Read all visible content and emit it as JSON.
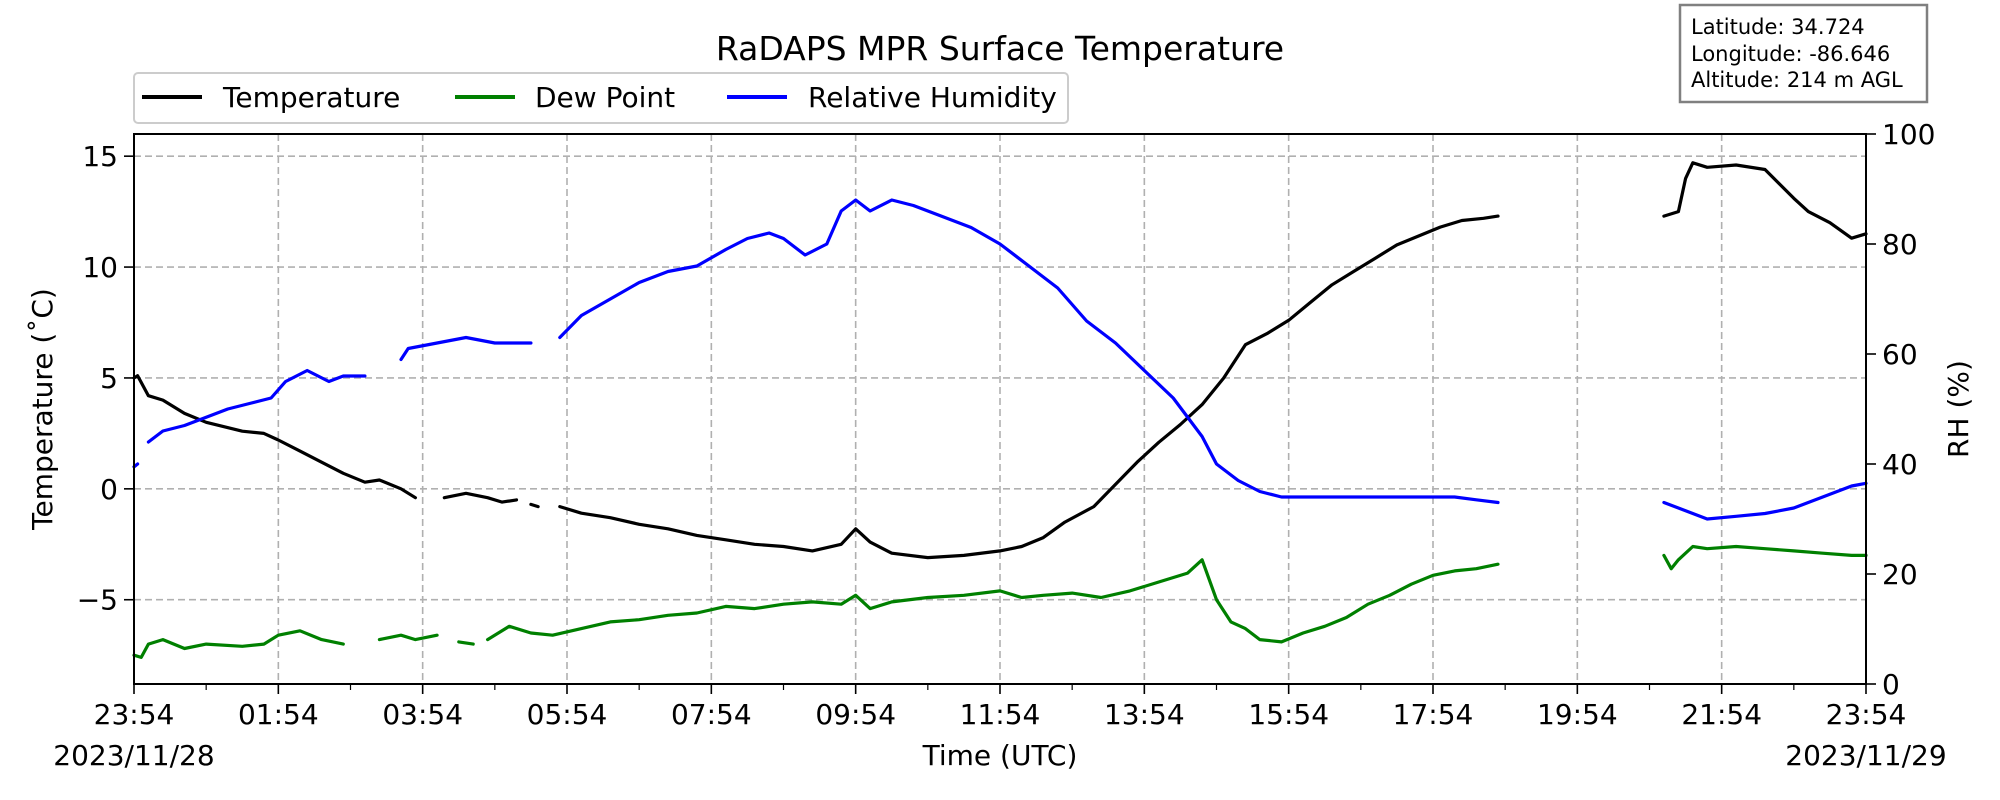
{
  "chart_data": {
    "type": "line",
    "title": "RaDAPS MPR Surface Temperature",
    "xlabel": "Time (UTC)",
    "ylabel": "Temperature ($^\\circ$C)",
    "ylabel_display": "Temperature (˚C)",
    "y2label": "RH (%)",
    "ylim": [
      -8.8,
      16
    ],
    "y2lim": [
      0,
      100
    ],
    "xlim": [
      "2023-11-28 23:54",
      "2023-11-29 23:54"
    ],
    "x_ticks": [
      "23:54",
      "01:54",
      "03:54",
      "05:54",
      "07:54",
      "09:54",
      "11:54",
      "13:54",
      "15:54",
      "17:54",
      "19:54",
      "21:54",
      "23:54"
    ],
    "y_ticks": [
      "15",
      "10",
      "5",
      "0",
      "−5"
    ],
    "y2_ticks": [
      "100",
      "80",
      "60",
      "40",
      "20",
      "0"
    ],
    "date_left": "2023/11/28",
    "date_right": "2023/11/29",
    "grid": true,
    "legend_position": "top-left",
    "station_info": {
      "latitude": "Latitude: 34.724",
      "longitude": "Longitude: -86.646",
      "altitude": "Altitude: 214 m AGL"
    },
    "series": [
      {
        "name": "Temperature",
        "axis": "left",
        "color": "#000000",
        "x_hours": [
          0.0,
          0.05,
          0.2,
          0.4,
          0.7,
          1.0,
          1.5,
          1.8,
          2.0,
          2.3,
          2.6,
          2.9,
          3.2,
          3.4,
          3.7,
          3.9,
          null,
          4.3,
          4.6,
          4.9,
          5.1,
          5.3,
          null,
          5.5,
          5.6,
          null,
          5.9,
          6.2,
          6.6,
          7.0,
          7.4,
          7.8,
          8.2,
          8.6,
          9.0,
          9.4,
          9.8,
          10.0,
          10.2,
          10.5,
          11.0,
          11.5,
          12.0,
          12.3,
          12.6,
          12.9,
          13.3,
          13.6,
          13.9,
          14.2,
          14.5,
          14.8,
          15.1,
          15.4,
          15.7,
          16.0,
          16.3,
          16.6,
          16.9,
          17.2,
          17.5,
          17.8,
          18.1,
          18.4,
          18.7,
          18.9,
          null,
          21.2,
          21.4,
          21.5,
          21.6,
          21.8,
          22.2,
          22.6,
          23.0,
          23.2,
          23.5,
          23.8,
          24.0
        ],
        "y": [
          5.0,
          5.1,
          4.2,
          4.0,
          3.4,
          3.0,
          2.6,
          2.5,
          2.2,
          1.7,
          1.2,
          0.7,
          0.3,
          0.4,
          0.0,
          -0.4,
          null,
          -0.4,
          -0.2,
          -0.4,
          -0.6,
          -0.5,
          null,
          -0.7,
          -0.8,
          null,
          -0.8,
          -1.1,
          -1.3,
          -1.6,
          -1.8,
          -2.1,
          -2.3,
          -2.5,
          -2.6,
          -2.8,
          -2.5,
          -1.8,
          -2.4,
          -2.9,
          -3.1,
          -3.0,
          -2.8,
          -2.6,
          -2.2,
          -1.5,
          -0.8,
          0.2,
          1.2,
          2.1,
          2.9,
          3.8,
          5.0,
          6.5,
          7.0,
          7.6,
          8.4,
          9.2,
          9.8,
          10.4,
          11.0,
          11.4,
          11.8,
          12.1,
          12.2,
          12.3,
          null,
          12.3,
          12.5,
          14.0,
          14.7,
          14.5,
          14.6,
          14.4,
          13.1,
          12.5,
          12.0,
          11.3,
          11.5
        ]
      },
      {
        "name": "Dew Point",
        "axis": "left",
        "color": "#008000",
        "x_hours": [
          0.0,
          0.1,
          0.2,
          0.4,
          0.7,
          1.0,
          1.5,
          1.8,
          2.0,
          2.3,
          2.6,
          2.9,
          3.2,
          3.4,
          3.7,
          3.9,
          4.2,
          null,
          4.5,
          4.7,
          null,
          4.9,
          5.2,
          5.5,
          5.8,
          6.2,
          6.6,
          7.0,
          7.4,
          7.8,
          8.2,
          8.6,
          9.0,
          9.4,
          9.8,
          10.0,
          10.2,
          10.5,
          11.0,
          11.5,
          12.0,
          12.3,
          12.6,
          13.0,
          13.4,
          13.8,
          14.2,
          14.6,
          14.8,
          15.0,
          15.2,
          15.4,
          15.6,
          15.9,
          16.2,
          16.5,
          16.8,
          17.1,
          17.4,
          17.7,
          18.0,
          18.3,
          18.6,
          18.9,
          null,
          21.2,
          21.3,
          21.4,
          21.6,
          21.8,
          22.2,
          22.6,
          23.0,
          23.4,
          23.8,
          24.0
        ],
        "y": [
          -7.5,
          -7.6,
          -7.0,
          -6.8,
          -7.2,
          -7.0,
          -7.1,
          -7.0,
          -6.6,
          -6.4,
          -6.8,
          -7.0,
          null,
          -6.8,
          -6.6,
          -6.8,
          -6.6,
          null,
          -6.9,
          -7.0,
          null,
          -6.8,
          -6.2,
          -6.5,
          -6.6,
          -6.3,
          -6.0,
          -5.9,
          -5.7,
          -5.6,
          -5.3,
          -5.4,
          -5.2,
          -5.1,
          -5.2,
          -4.8,
          -5.4,
          -5.1,
          -4.9,
          -4.8,
          -4.6,
          -4.9,
          -4.8,
          -4.7,
          -4.9,
          -4.6,
          -4.2,
          -3.8,
          -3.2,
          -5.0,
          -6.0,
          -6.3,
          -6.8,
          -6.9,
          -6.5,
          -6.2,
          -5.8,
          -5.2,
          -4.8,
          -4.3,
          -3.9,
          -3.7,
          -3.6,
          -3.4,
          null,
          -3.0,
          -3.6,
          -3.2,
          -2.6,
          -2.7,
          -2.6,
          -2.7,
          -2.8,
          -2.9,
          -3.0,
          -3.0
        ]
      },
      {
        "name": "Relative Humidity",
        "axis": "right",
        "color": "#0000ff",
        "x_hours": [
          0.0,
          0.05,
          null,
          0.2,
          0.4,
          0.7,
          1.0,
          1.3,
          1.6,
          1.9,
          2.1,
          2.4,
          2.7,
          2.9,
          3.2,
          null,
          3.7,
          3.8,
          4.2,
          4.6,
          5.0,
          5.3,
          5.5,
          5.6,
          null,
          5.9,
          6.2,
          6.6,
          7.0,
          7.4,
          7.8,
          8.2,
          8.5,
          8.8,
          9.0,
          9.3,
          9.6,
          9.8,
          10.0,
          10.2,
          10.5,
          10.8,
          11.2,
          11.6,
          12.0,
          12.4,
          12.8,
          13.2,
          13.6,
          14.0,
          14.4,
          14.8,
          15.0,
          15.3,
          15.6,
          15.9,
          16.2,
          16.5,
          16.8,
          17.1,
          17.4,
          17.7,
          18.0,
          18.3,
          18.6,
          18.9,
          null,
          21.2,
          21.4,
          21.6,
          21.8,
          22.2,
          22.6,
          23.0,
          23.4,
          23.8,
          24.0
        ],
        "y": [
          39.5,
          40.0,
          null,
          44.0,
          46.0,
          47.0,
          48.5,
          50.0,
          51.0,
          52.0,
          55.0,
          57.0,
          55.0,
          56.0,
          56.0,
          null,
          59.0,
          61.0,
          62.0,
          63.0,
          62.0,
          62.0,
          62.0,
          null,
          null,
          63.0,
          67.0,
          70.0,
          73.0,
          75.0,
          76.0,
          79.0,
          81.0,
          82.0,
          81.0,
          78.0,
          80.0,
          86.0,
          88.0,
          86.0,
          88.0,
          87.0,
          85.0,
          83.0,
          80.0,
          76.0,
          72.0,
          66.0,
          62.0,
          57.0,
          52.0,
          45.0,
          40.0,
          37.0,
          35.0,
          34.0,
          34.0,
          34.0,
          34.0,
          34.0,
          34.0,
          34.0,
          34.0,
          34.0,
          33.5,
          33.0,
          null,
          33.0,
          32.0,
          31.0,
          30.0,
          30.5,
          31.0,
          32.0,
          34.0,
          36.0,
          36.5
        ]
      }
    ]
  }
}
